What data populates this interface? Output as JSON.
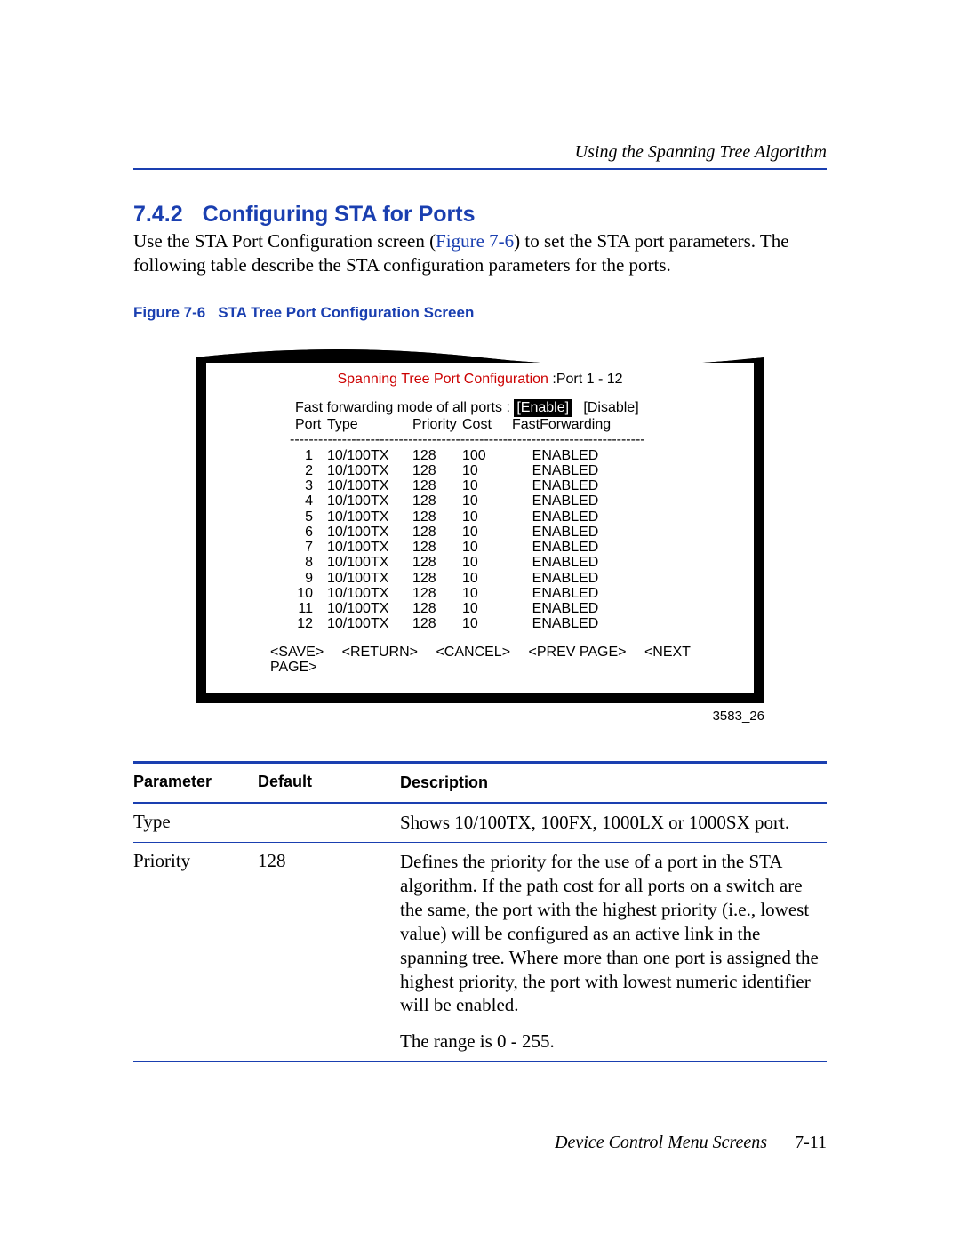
{
  "running_head": "Using the Spanning Tree Algorithm",
  "section": {
    "number": "7.4.2",
    "title": "Configuring STA for Ports"
  },
  "para": {
    "pre": "Use the STA Port Configuration screen (",
    "link": "Figure 7-6",
    "post": ") to set the STA port parameters. The following table describe the STA configuration parameters for the ports."
  },
  "fig_caption": {
    "num": "Figure 7-6",
    "text": "STA Tree Port Configuration Screen"
  },
  "terminal": {
    "title_red": "Spanning Tree Port Configuration ",
    "title_black": ":Port  1 - 12",
    "ff_label": "Fast forwarding mode of all ports : ",
    "ff_selected": "[Enable]",
    "ff_other": "[Disable]",
    "headers": [
      "Port",
      "Type",
      "Priority",
      "Cost",
      "FastForwarding"
    ],
    "rows": [
      {
        "port": "1",
        "type": "10/100TX",
        "prio": "128",
        "cost": "100",
        "ff": "ENABLED"
      },
      {
        "port": "2",
        "type": "10/100TX",
        "prio": "128",
        "cost": "10",
        "ff": "ENABLED"
      },
      {
        "port": "3",
        "type": "10/100TX",
        "prio": "128",
        "cost": "10",
        "ff": "ENABLED"
      },
      {
        "port": "4",
        "type": "10/100TX",
        "prio": "128",
        "cost": "10",
        "ff": "ENABLED"
      },
      {
        "port": "5",
        "type": "10/100TX",
        "prio": "128",
        "cost": "10",
        "ff": "ENABLED"
      },
      {
        "port": "6",
        "type": "10/100TX",
        "prio": "128",
        "cost": "10",
        "ff": "ENABLED"
      },
      {
        "port": "7",
        "type": "10/100TX",
        "prio": "128",
        "cost": "10",
        "ff": "ENABLED"
      },
      {
        "port": "8",
        "type": "10/100TX",
        "prio": "128",
        "cost": "10",
        "ff": "ENABLED"
      },
      {
        "port": "9",
        "type": "10/100TX",
        "prio": "128",
        "cost": "10",
        "ff": "ENABLED"
      },
      {
        "port": "10",
        "type": "10/100TX",
        "prio": "128",
        "cost": "10",
        "ff": "ENABLED"
      },
      {
        "port": "11",
        "type": "10/100TX",
        "prio": "128",
        "cost": "10",
        "ff": "ENABLED"
      },
      {
        "port": "12",
        "type": "10/100TX",
        "prio": "128",
        "cost": "10",
        "ff": "ENABLED"
      }
    ],
    "nav": [
      "<SAVE>",
      "<RETURN>",
      "<CANCEL>",
      "<PREV PAGE>",
      "<NEXT PAGE>"
    ],
    "fig_id": "3583_26"
  },
  "param_table": {
    "headers": [
      "Parameter",
      "Default",
      "Description"
    ],
    "rows": [
      {
        "param": "Type",
        "def": "",
        "desc": "Shows 10/100TX, 100FX, 1000LX or 1000SX port."
      },
      {
        "param": "Priority",
        "def": "128",
        "desc": "Defines the priority for the use of a port in the STA algorithm. If the path cost for all ports on a switch are the same, the port with the highest priority (i.e., lowest value) will be configured as an active link in the spanning tree. Where more than one port is assigned the highest priority, the port with lowest numeric identifier will be enabled.",
        "desc2": "The range is 0 - 255."
      }
    ]
  },
  "footer": {
    "title": "Device Control Menu Screens",
    "page": "7-11"
  }
}
